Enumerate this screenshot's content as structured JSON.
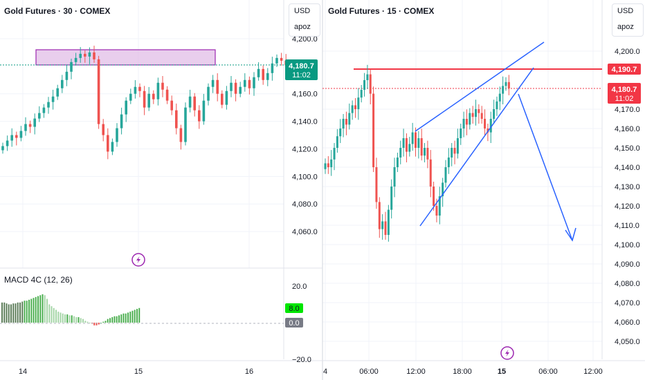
{
  "colors": {
    "up": "#26a69a",
    "down": "#ef5350",
    "zone_fill": "#e1bee7",
    "zone_stroke": "#9c27b0",
    "resistance": "#f23645",
    "wedge": "#2962ff",
    "macd_bull": "#4caf50",
    "macd_bull_light": "#a5d6a7",
    "macd_bear": "#ef5350",
    "grid": "#f0f3fa",
    "last_price_green": "#089981",
    "last_price_red": "#f23645"
  },
  "icons": {
    "flash": "lightning-bolt-icon"
  },
  "left_panel": {
    "header": "Gold Futures · 30 · COMEX",
    "currency": "USD",
    "user": "apoz",
    "price_label": "4,180.7",
    "countdown": "11:02",
    "macd_label": "MACD 4C (12, 26)",
    "macd_value": "8.0",
    "macd_zero": "0.0"
  },
  "right_panel": {
    "header": "Gold Futures · 15 · COMEX",
    "currency": "USD",
    "user": "apoz",
    "resistance_label": "4,190.7",
    "price_label": "4,180.7",
    "countdown": "11:02"
  },
  "chart_data": [
    {
      "type": "candlestick",
      "title": "Gold Futures · 30 · COMEX",
      "timeframe": "30",
      "x_ticks": [
        "14",
        "15",
        "16"
      ],
      "y_ticks": [
        4060,
        4080,
        4100,
        4120,
        4140,
        4160,
        4180,
        4200
      ],
      "y_tick_labels": [
        "4,060.0",
        "4,080.0",
        "4,100.0",
        "4,120.0",
        "4,140.0",
        "4,160.0",
        "4,180.7",
        "4,200.0"
      ],
      "ylim": [
        4050,
        4205
      ],
      "last_price": 4180.7,
      "resistance_zone": [
        4181,
        4192
      ],
      "series": [
        {
          "name": "price",
          "close": [
            4122,
            4126,
            4130,
            4128,
            4133,
            4138,
            4136,
            4142,
            4146,
            4150,
            4154,
            4158,
            4164,
            4170,
            4176,
            4183,
            4186,
            4189,
            4187,
            4190,
            4185,
            4138,
            4130,
            4118,
            4125,
            4135,
            4145,
            4155,
            4160,
            4165,
            4162,
            4150,
            4160,
            4156,
            4168,
            4163,
            4155,
            4148,
            4135,
            4125,
            4150,
            4158,
            4148,
            4140,
            4155,
            4165,
            4170,
            4160,
            4152,
            4162,
            4168,
            4160,
            4165,
            4170,
            4164,
            4172,
            4178,
            4170,
            4175,
            4182,
            4186,
            4184,
            4180.7
          ]
        }
      ]
    },
    {
      "type": "bar",
      "title": "MACD 4C (12, 26)",
      "y_ticks": [
        -20,
        0,
        20
      ],
      "y_tick_labels": [
        "−20.0",
        "0.0",
        "20.0"
      ],
      "ylim": [
        -20,
        20
      ],
      "last_value": 8.0,
      "values": [
        11,
        11,
        10.5,
        10,
        10,
        10.5,
        10.5,
        11,
        11,
        11.5,
        12,
        12,
        12.5,
        13,
        13.5,
        14,
        14.5,
        15,
        15.5,
        15,
        13,
        10,
        9,
        8,
        7,
        6,
        5.5,
        5,
        4.5,
        4.5,
        4,
        4,
        3.5,
        3,
        3,
        2.5,
        2,
        1,
        0.5,
        0,
        -0.5,
        -1.5,
        -1.5,
        -1,
        0,
        0.5,
        1,
        2,
        2.5,
        3,
        3.5,
        3.5,
        4,
        4.5,
        5,
        5,
        5.5,
        6,
        6.5,
        7,
        7.5,
        8
      ]
    },
    {
      "type": "candlestick",
      "title": "Gold Futures · 15 · COMEX",
      "timeframe": "15",
      "x_ticks": [
        "4",
        "06:00",
        "12:00",
        "18:00",
        "15",
        "06:00",
        "12:00"
      ],
      "y_ticks": [
        4050,
        4060,
        4070,
        4080,
        4090,
        4100,
        4110,
        4120,
        4130,
        4140,
        4150,
        4160,
        4170,
        4180,
        4190,
        4200
      ],
      "y_tick_labels": [
        "4,050.0",
        "4,060.0",
        "4,070.0",
        "4,080.0",
        "4,090.0",
        "4,100.0",
        "4,110.0",
        "4,120.0",
        "4,130.0",
        "4,140.0",
        "4,150.0",
        "4,160.0",
        "4,170.0",
        "4,180.7",
        "4,190.7",
        "4,200.0"
      ],
      "ylim": [
        4045,
        4205
      ],
      "last_price": 4180.7,
      "resistance": 4190.7,
      "series": [
        {
          "name": "price",
          "close": [
            4142,
            4140,
            4144,
            4150,
            4156,
            4160,
            4165,
            4162,
            4168,
            4172,
            4170,
            4176,
            4180,
            4185,
            4188,
            4178,
            4140,
            4122,
            4108,
            4112,
            4105,
            4118,
            4130,
            4140,
            4145,
            4150,
            4155,
            4148,
            4152,
            4158,
            4150,
            4155,
            4146,
            4150,
            4144,
            4130,
            4120,
            4115,
            4125,
            4132,
            4140,
            4145,
            4150,
            4147,
            4155,
            4160,
            4165,
            4162,
            4168,
            4166,
            4170,
            4168,
            4165,
            4160,
            4158,
            4165,
            4170,
            4174,
            4178,
            4182,
            4184,
            4180.7
          ]
        }
      ],
      "annotations": [
        "rising wedge",
        "projected drop"
      ]
    }
  ]
}
